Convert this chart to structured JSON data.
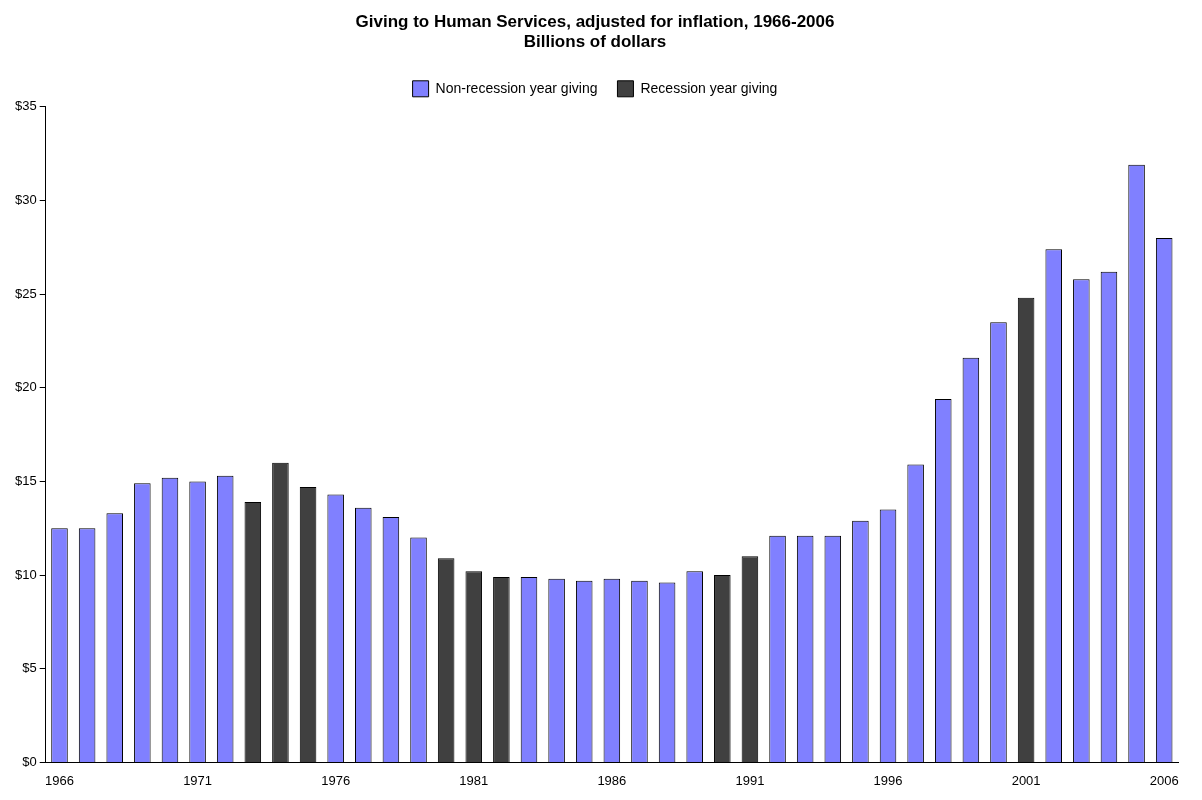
{
  "chart_data": {
    "type": "bar",
    "title": "Giving to Human Services, adjusted for inflation, 1966-2006",
    "subtitle": "Billions of dollars",
    "categories": [
      "1966",
      null,
      null,
      null,
      null,
      "1971",
      null,
      null,
      null,
      null,
      "1976",
      null,
      null,
      null,
      null,
      "1981",
      null,
      null,
      null,
      null,
      "1986",
      null,
      null,
      null,
      null,
      "1991",
      null,
      null,
      null,
      null,
      "1996",
      null,
      null,
      null,
      null,
      "2001",
      null,
      null,
      null,
      null,
      "2006"
    ],
    "series": [
      {
        "name": "Non-recession year giving",
        "color": "#8080ff",
        "values": [
          12.5,
          12.5,
          13.3,
          14.9,
          15.2,
          15.0,
          15.3,
          null,
          null,
          null,
          14.3,
          13.6,
          13.1,
          12.0,
          null,
          null,
          null,
          9.9,
          9.8,
          9.7,
          9.8,
          9.7,
          9.6,
          10.2,
          null,
          null,
          12.1,
          12.1,
          12.1,
          12.9,
          13.5,
          15.9,
          19.4,
          21.6,
          23.5,
          null,
          27.4,
          25.8,
          26.2,
          31.9,
          28.0
        ]
      },
      {
        "name": "Recession year giving",
        "color": "#404040",
        "values": [
          null,
          null,
          null,
          null,
          null,
          null,
          null,
          13.9,
          16.0,
          14.7,
          null,
          null,
          null,
          null,
          10.9,
          10.2,
          9.9,
          null,
          null,
          null,
          null,
          null,
          null,
          null,
          10.0,
          11.0,
          null,
          null,
          null,
          null,
          null,
          null,
          null,
          null,
          null,
          24.8,
          null,
          null,
          null,
          null,
          null
        ]
      }
    ],
    "ylim": [
      0,
      35
    ],
    "yticks": [
      {
        "value": 0,
        "label": "$0"
      },
      {
        "value": 5,
        "label": "$5"
      },
      {
        "value": 10,
        "label": "$10"
      },
      {
        "value": 15,
        "label": "$15"
      },
      {
        "value": 20,
        "label": "$20"
      },
      {
        "value": 25,
        "label": "$25"
      },
      {
        "value": 30,
        "label": "$30"
      },
      {
        "value": 35,
        "label": "$35"
      }
    ],
    "grid": false,
    "legend": "top"
  }
}
